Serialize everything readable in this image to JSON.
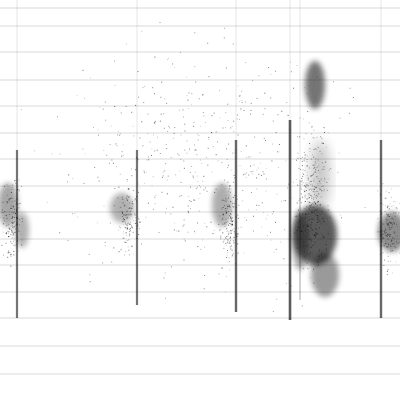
{
  "image": {
    "kind": "grayscale-spectrogram",
    "background_color": "#ffffff",
    "ink_color": "#000000",
    "gridline_color": "#d8d8d8",
    "gridlines": "horizontal",
    "vertical_streaks": 6,
    "text": []
  }
}
